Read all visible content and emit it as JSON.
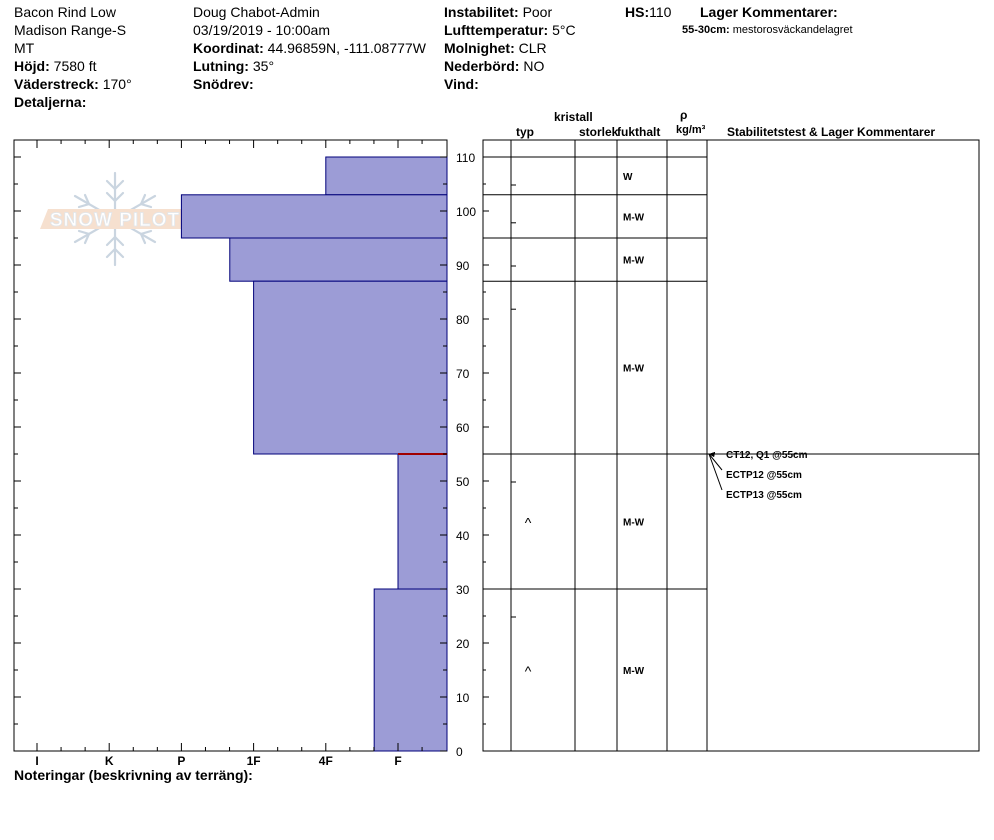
{
  "header": {
    "location": "Bacon Rind Low",
    "range": "Madison Range-S",
    "state": "MT",
    "elevation_label": "Höjd:",
    "elevation": "7580 ft",
    "aspect_label": "Väderstreck:",
    "aspect": "170°",
    "details_label": "Detaljerna:",
    "observer": "Doug Chabot-Admin",
    "datetime": "03/19/2019 - 10:00am",
    "coord_label": "Koordinat:",
    "coord": "44.96859N, -111.08777W",
    "slope_label": "Lutning:",
    "slope": "35°",
    "drift_label": "Snödrev:",
    "instability_label": "Instabilitet:",
    "instability": "Poor",
    "airtemp_label": "Lufttemperatur:",
    "airtemp": "5°C",
    "cloud_label": "Molnighet:",
    "cloud": "CLR",
    "precip_label": "Nederbörd:",
    "precip": "NO",
    "wind_label": "Vind:",
    "hs_label": "HS:",
    "hs": "110",
    "layer_comments_label": "Lager Kommentarer:",
    "layer_comment_range": "55-30cm:",
    "layer_comment_text": "mestorosväckandelagret"
  },
  "columns": {
    "type": "typ",
    "crystal": "kristall",
    "size": "storlek",
    "moisture": "fukthalt",
    "rho": "ρ",
    "rho_unit": "kg/m³",
    "stability": "Stabilitetstest & Lager Kommentarer"
  },
  "footer": {
    "notes_label": "Noteringar (beskrivning av terräng):"
  },
  "chart_data": {
    "type": "bar",
    "description_axis_x": [
      "I",
      "K",
      "P",
      "1F",
      "4F",
      "F"
    ],
    "ylim": [
      0,
      110
    ],
    "y_ticks": [
      0,
      10,
      20,
      30,
      40,
      50,
      60,
      70,
      80,
      90,
      100,
      110
    ],
    "layers": [
      {
        "top": 110,
        "bottom": 103,
        "hardness": "4F",
        "moisture": "W",
        "grain": ""
      },
      {
        "top": 103,
        "bottom": 95,
        "hardness": "P",
        "moisture": "M-W",
        "grain": ""
      },
      {
        "top": 95,
        "bottom": 87,
        "hardness": "P-1F",
        "moisture": "M-W",
        "grain": ""
      },
      {
        "top": 87,
        "bottom": 55,
        "hardness": "1F",
        "moisture": "M-W",
        "grain": ""
      },
      {
        "top": 55,
        "bottom": 30,
        "hardness": "F",
        "moisture": "M-W",
        "grain": "^"
      },
      {
        "top": 30,
        "bottom": 0,
        "hardness": "4F-F",
        "moisture": "M-W",
        "grain": "^"
      }
    ],
    "hardness_positions": {
      "I": 0,
      "K": 1,
      "P": 2,
      "P-1F": 2.67,
      "1F": 3,
      "4F": 4,
      "4F-F": 4.67,
      "F": 5
    },
    "weak_layer": 55,
    "stability_tests": [
      {
        "label": "CT12, Q1 @55cm",
        "depth": 55
      },
      {
        "label": "ECTP12 @55cm",
        "depth": 55
      },
      {
        "label": "ECTP13 @55cm",
        "depth": 55
      }
    ],
    "colors": {
      "fill": "#9c9cd6",
      "stroke": "#00007a",
      "weak": "#a00000"
    }
  }
}
